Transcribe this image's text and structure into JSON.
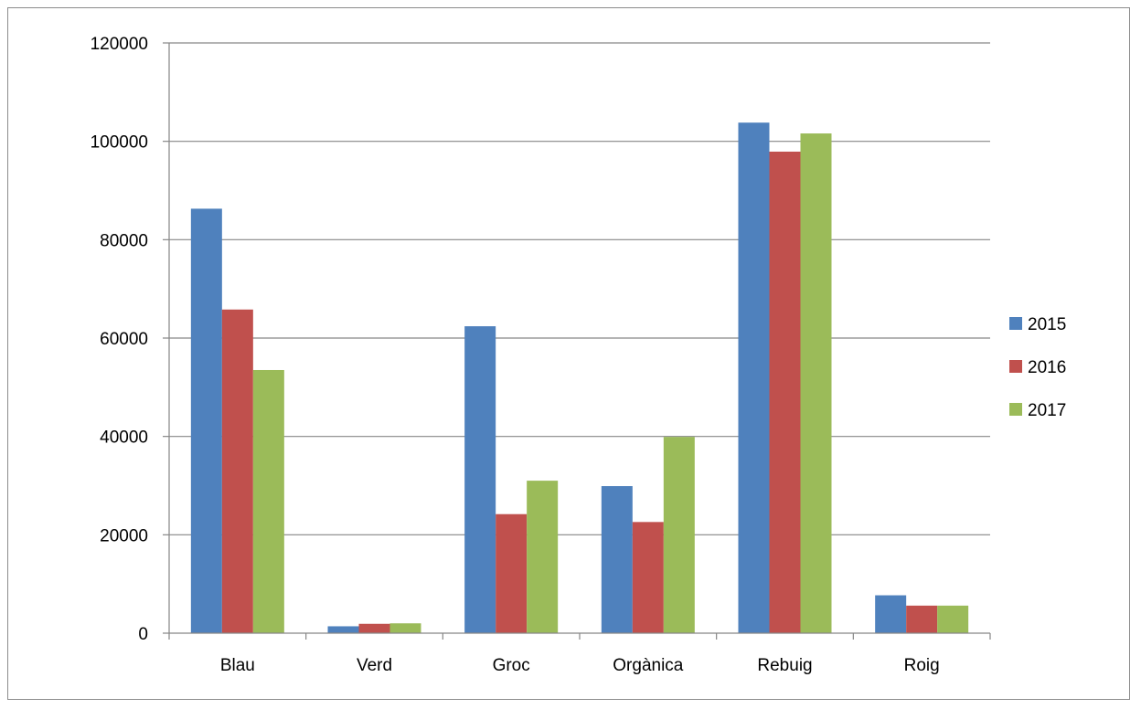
{
  "chart_data": {
    "type": "bar",
    "title": "",
    "xlabel": "",
    "ylabel": "",
    "categories": [
      "Blau",
      "Verd",
      "Groc",
      "Orgànica",
      "Rebuig",
      "Roig"
    ],
    "series": [
      {
        "name": "2015",
        "color": "#4F81BD",
        "values": [
          86300,
          1400,
          62400,
          29900,
          103800,
          7700
        ]
      },
      {
        "name": "2016",
        "color": "#C0504D",
        "values": [
          65800,
          1900,
          24200,
          22600,
          97900,
          5600
        ]
      },
      {
        "name": "2017",
        "color": "#9BBB59",
        "values": [
          53500,
          2000,
          31000,
          39900,
          101600,
          5600
        ]
      }
    ],
    "ylim": [
      0,
      120000
    ],
    "yticks": [
      "0",
      "20000",
      "40000",
      "60000",
      "80000",
      "100000",
      "120000"
    ],
    "grid": true,
    "legend_position": "right"
  }
}
